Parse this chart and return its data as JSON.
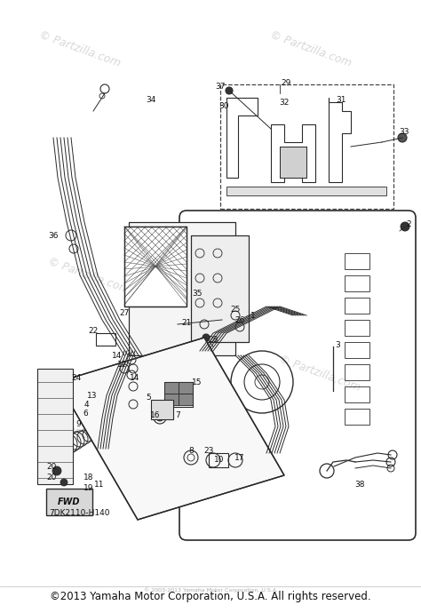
{
  "bg_color": "#ffffff",
  "footer_text": "©2013 Yamaha Motor Corporation, U.S.A. All rights reserved.",
  "footer_fontsize": 8.5,
  "footer_color": "#111111",
  "diagram_code": "7DK2110-H140",
  "watermark_color": "#c8c8c8",
  "watermark_fontsize": 9,
  "line_color": "#2a2a2a",
  "line_width": 0.8,
  "label_fontsize": 6.5,
  "label_color": "#111111",
  "small_footer_text": "© 2003-2013 Yamaha Motor Corporation, U.S.A.",
  "small_footer_fontsize": 4.5,
  "small_footer_color": "#aaaaaa"
}
